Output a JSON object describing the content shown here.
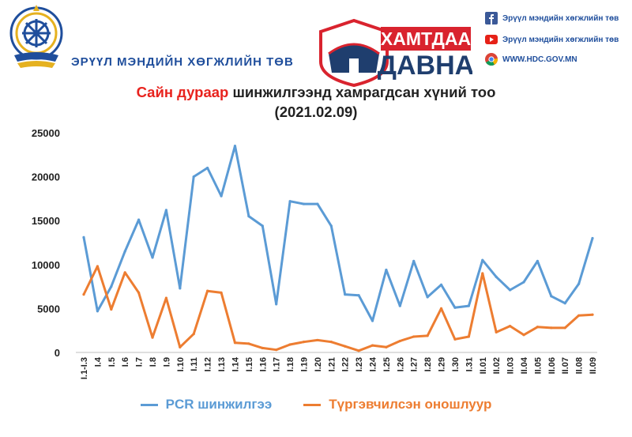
{
  "header": {
    "org_name": "ЭРҮҮЛ МЭНДИЙН ХӨГЖЛИЙН ТӨВ",
    "campaign_top": "ХАМТДАА",
    "campaign_bottom": "ДАВНА",
    "social": [
      {
        "icon": "facebook-icon",
        "text": "Эрүүл мэндийн хөгжлийн төв"
      },
      {
        "icon": "youtube-icon",
        "text": "Эрүүл мэндийн хөгжлийн төв"
      },
      {
        "icon": "chrome-icon",
        "text": "WWW.HDC.GOV.MN"
      }
    ],
    "colors": {
      "brand_blue": "#1f4e9c",
      "campaign_red": "#d9232e",
      "title_red": "#e8231e"
    }
  },
  "chart_data": {
    "type": "line",
    "title_highlight": "Сайн дураар",
    "title_rest": " шинжилгээнд хамрагдсан хүний тоо",
    "subtitle": "(2021.02.09)",
    "xlabel": "",
    "ylabel": "",
    "ylim": [
      0,
      25000
    ],
    "yticks": [
      0,
      5000,
      10000,
      15000,
      20000,
      25000
    ],
    "grid": false,
    "legend_position": "bottom",
    "categories": [
      "I.1-I.3",
      "I.4",
      "I.5",
      "I.6",
      "I.7",
      "I.8",
      "I.9",
      "I.10",
      "I.11",
      "I.12",
      "I.13",
      "I.14",
      "I.15",
      "I.16",
      "I.17",
      "I.18",
      "I.19",
      "I.20",
      "I.21",
      "I.22",
      "I.23",
      "I.24",
      "I.25",
      "I.26",
      "I.27",
      "I.28",
      "I.29",
      "I.30",
      "I.31",
      "II.01",
      "II.02",
      "II.03",
      "II.04",
      "II.05",
      "II.06",
      "II.07",
      "II.08",
      "II.09"
    ],
    "series": [
      {
        "name": "PCR шинжилгээ",
        "color": "#5b9bd5",
        "values": [
          13100,
          4700,
          7500,
          11500,
          15100,
          10800,
          16200,
          7300,
          20000,
          21000,
          17800,
          23500,
          15500,
          14400,
          5500,
          17200,
          16900,
          16900,
          14400,
          6600,
          6500,
          3600,
          9400,
          5300,
          10400,
          6300,
          7700,
          5100,
          5300,
          10500,
          8600,
          7100,
          8000,
          10400,
          6400,
          5600,
          7800,
          13000
        ]
      },
      {
        "name": "Түргэвчилсэн оношлуур",
        "color": "#ed7d31",
        "values": [
          6600,
          9800,
          4900,
          9100,
          6800,
          1700,
          6200,
          600,
          2100,
          7000,
          6800,
          1100,
          1000,
          500,
          300,
          900,
          1200,
          1400,
          1200,
          700,
          200,
          800,
          600,
          1300,
          1800,
          1900,
          5000,
          1500,
          1800,
          9000,
          2300,
          3000,
          2000,
          2900,
          2800,
          2800,
          4200,
          4300
        ]
      }
    ]
  }
}
